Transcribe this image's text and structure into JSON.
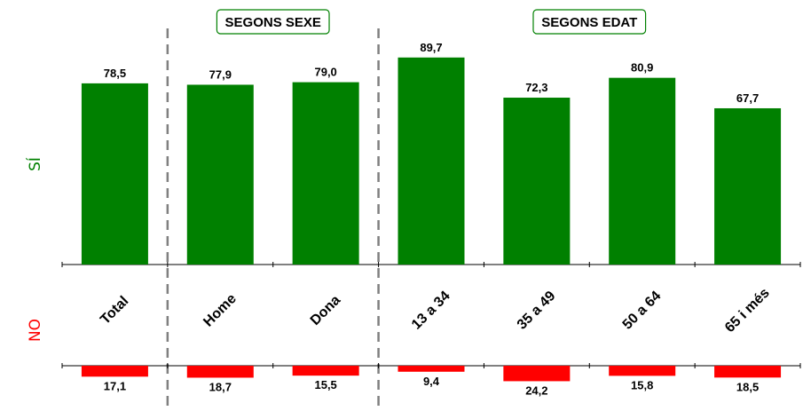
{
  "chart_data": {
    "type": "bar",
    "categories": [
      "Total",
      "Home",
      "Dona",
      "13 a 34",
      "35  a 49",
      "50 a 64",
      "65 i més"
    ],
    "series": [
      {
        "name": "SÍ",
        "values": [
          78.5,
          77.9,
          79.0,
          89.7,
          72.3,
          80.9,
          67.7
        ],
        "labels": [
          "78,5",
          "77,9",
          "79,0",
          "89,7",
          "72,3",
          "80,9",
          "67,7"
        ]
      },
      {
        "name": "NO",
        "values": [
          17.1,
          18.7,
          15.5,
          9.4,
          24.2,
          15.8,
          18.5
        ],
        "labels": [
          "17,1",
          "18,7",
          "15,5",
          "9,4",
          "24,2",
          "15,8",
          "18,5"
        ]
      }
    ],
    "groups": [
      {
        "label": "SEGONS SEXE",
        "categories": [
          "Home",
          "Dona"
        ]
      },
      {
        "label": "SEGONS EDAT",
        "categories": [
          "13 a 34",
          "35  a 49",
          "50 a 64",
          "65 i més"
        ]
      }
    ],
    "colors": {
      "si": "#008000",
      "no": "#ff0000",
      "separator": "#808080"
    },
    "grid": false,
    "legend": "none"
  }
}
